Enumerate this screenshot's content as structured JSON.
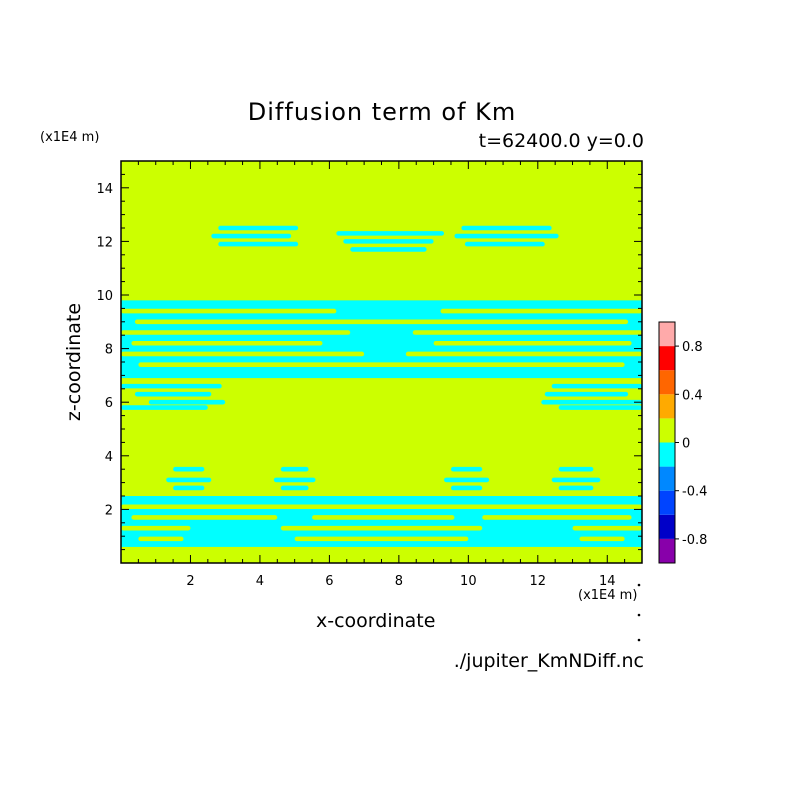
{
  "chart_data": {
    "type": "heatmap",
    "title": "Diffusion term of Km",
    "subtitle": "t=62400.0 y=0.0",
    "xlabel": "x-coordinate",
    "ylabel": "z-coordinate",
    "x_unit": "(x1E4 m)",
    "y_unit": "(x1E4 m)",
    "source_label": "./jupiter_KmNDiff.nc",
    "xlim": [
      0,
      15
    ],
    "ylim": [
      0,
      15
    ],
    "x_ticks": [
      2,
      4,
      6,
      8,
      10,
      12,
      14
    ],
    "y_ticks": [
      2,
      4,
      6,
      8,
      10,
      12,
      14
    ],
    "colorbar": {
      "levels": [
        -1.0,
        -0.8,
        -0.6,
        -0.4,
        -0.2,
        0.0,
        0.2,
        0.4,
        0.6,
        0.8,
        1.0
      ],
      "colors": [
        "#8800aa",
        "#0000c8",
        "#0044ff",
        "#0088ff",
        "#00ffff",
        "#ccff00",
        "#ffaa00",
        "#ff6600",
        "#ff0000",
        "#ffaaaa"
      ],
      "tick_labels": [
        "0.8",
        "0.4",
        "0",
        "-0.4",
        "-0.8"
      ],
      "tick_values": [
        0.8,
        0.4,
        0.0,
        -0.4,
        -0.8
      ]
    },
    "background_value": 0.0,
    "negative_band_value": -0.1,
    "negative_regions": {
      "bands": [
        [
          0.6,
          2.5
        ],
        [
          6.9,
          9.8
        ]
      ],
      "bars": [
        {
          "x": [
            2.8,
            5.1
          ],
          "z": 12.5
        },
        {
          "x": [
            2.6,
            4.9
          ],
          "z": 12.2
        },
        {
          "x": [
            2.8,
            5.1
          ],
          "z": 11.9
        },
        {
          "x": [
            6.2,
            9.3
          ],
          "z": 12.3
        },
        {
          "x": [
            6.4,
            9.0
          ],
          "z": 12.0
        },
        {
          "x": [
            6.6,
            8.8
          ],
          "z": 11.7
        },
        {
          "x": [
            9.8,
            12.4
          ],
          "z": 12.5
        },
        {
          "x": [
            9.6,
            12.6
          ],
          "z": 12.2
        },
        {
          "x": [
            9.9,
            12.2
          ],
          "z": 11.9
        },
        {
          "x": [
            0.0,
            2.9
          ],
          "z": 6.6
        },
        {
          "x": [
            0.4,
            2.6
          ],
          "z": 6.3
        },
        {
          "x": [
            0.8,
            3.0
          ],
          "z": 6.0
        },
        {
          "x": [
            0.0,
            2.5
          ],
          "z": 5.8
        },
        {
          "x": [
            12.4,
            15.0
          ],
          "z": 6.6
        },
        {
          "x": [
            12.2,
            14.6
          ],
          "z": 6.3
        },
        {
          "x": [
            12.1,
            15.0
          ],
          "z": 6.0
        },
        {
          "x": [
            12.6,
            15.0
          ],
          "z": 5.8
        },
        {
          "x": [
            1.5,
            2.4
          ],
          "z": 3.5
        },
        {
          "x": [
            1.3,
            2.6
          ],
          "z": 3.1
        },
        {
          "x": [
            1.5,
            2.4
          ],
          "z": 2.8
        },
        {
          "x": [
            4.6,
            5.4
          ],
          "z": 3.5
        },
        {
          "x": [
            4.4,
            5.6
          ],
          "z": 3.1
        },
        {
          "x": [
            4.6,
            5.4
          ],
          "z": 2.8
        },
        {
          "x": [
            9.5,
            10.4
          ],
          "z": 3.5
        },
        {
          "x": [
            9.3,
            10.6
          ],
          "z": 3.1
        },
        {
          "x": [
            9.5,
            10.4
          ],
          "z": 2.8
        },
        {
          "x": [
            12.6,
            13.6
          ],
          "z": 3.5
        },
        {
          "x": [
            12.4,
            13.8
          ],
          "z": 3.1
        },
        {
          "x": [
            12.6,
            13.6
          ],
          "z": 2.8
        }
      ],
      "band_stripes": [
        {
          "z": 9.4,
          "x": [
            0.0,
            6.2
          ]
        },
        {
          "z": 9.4,
          "x": [
            9.2,
            15.0
          ]
        },
        {
          "z": 9.0,
          "x": [
            0.4,
            14.6
          ]
        },
        {
          "z": 8.6,
          "x": [
            0.0,
            6.6
          ]
        },
        {
          "z": 8.6,
          "x": [
            8.4,
            15.0
          ]
        },
        {
          "z": 8.2,
          "x": [
            0.3,
            5.8
          ]
        },
        {
          "z": 8.2,
          "x": [
            9.0,
            14.7
          ]
        },
        {
          "z": 7.8,
          "x": [
            0.0,
            7.0
          ]
        },
        {
          "z": 7.8,
          "x": [
            8.2,
            15.0
          ]
        },
        {
          "z": 7.4,
          "x": [
            0.5,
            14.5
          ]
        },
        {
          "z": 2.1,
          "x": [
            0.0,
            15.0
          ]
        },
        {
          "z": 1.7,
          "x": [
            0.3,
            4.5
          ]
        },
        {
          "z": 1.7,
          "x": [
            5.5,
            9.6
          ]
        },
        {
          "z": 1.7,
          "x": [
            10.4,
            14.7
          ]
        },
        {
          "z": 1.3,
          "x": [
            0.0,
            2.0
          ]
        },
        {
          "z": 1.3,
          "x": [
            4.6,
            10.4
          ]
        },
        {
          "z": 1.3,
          "x": [
            13.0,
            15.0
          ]
        },
        {
          "z": 0.9,
          "x": [
            0.5,
            1.8
          ]
        },
        {
          "z": 0.9,
          "x": [
            5.0,
            10.0
          ]
        },
        {
          "z": 0.9,
          "x": [
            13.2,
            14.5
          ]
        }
      ]
    }
  }
}
